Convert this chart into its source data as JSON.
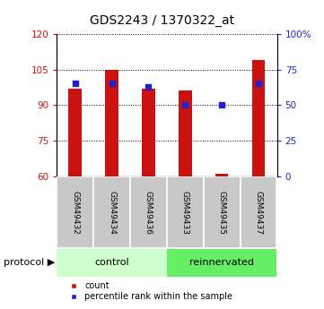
{
  "title": "GDS2243 / 1370322_at",
  "samples": [
    "GSM49432",
    "GSM49434",
    "GSM49436",
    "GSM49433",
    "GSM49435",
    "GSM49437"
  ],
  "counts": [
    97,
    105,
    97,
    96,
    61,
    109
  ],
  "percentiles": [
    65,
    65,
    63,
    50,
    50,
    65
  ],
  "groups": [
    "control",
    "control",
    "control",
    "reinnervated",
    "reinnervated",
    "reinnervated"
  ],
  "ylim_left": [
    60,
    120
  ],
  "ylim_right": [
    0,
    100
  ],
  "yticks_left": [
    60,
    75,
    90,
    105,
    120
  ],
  "yticks_right": [
    0,
    25,
    50,
    75,
    100
  ],
  "bar_color": "#cc1111",
  "blue_color": "#2222cc",
  "bg_plot": "#ffffff",
  "bg_label_gray": "#c8c8c8",
  "bg_control": "#ccffcc",
  "bg_reinnervated": "#66ee66",
  "title_fontsize": 10,
  "tick_fontsize": 7.5,
  "sample_fontsize": 6.5,
  "prot_fontsize": 8,
  "legend_fontsize": 7
}
